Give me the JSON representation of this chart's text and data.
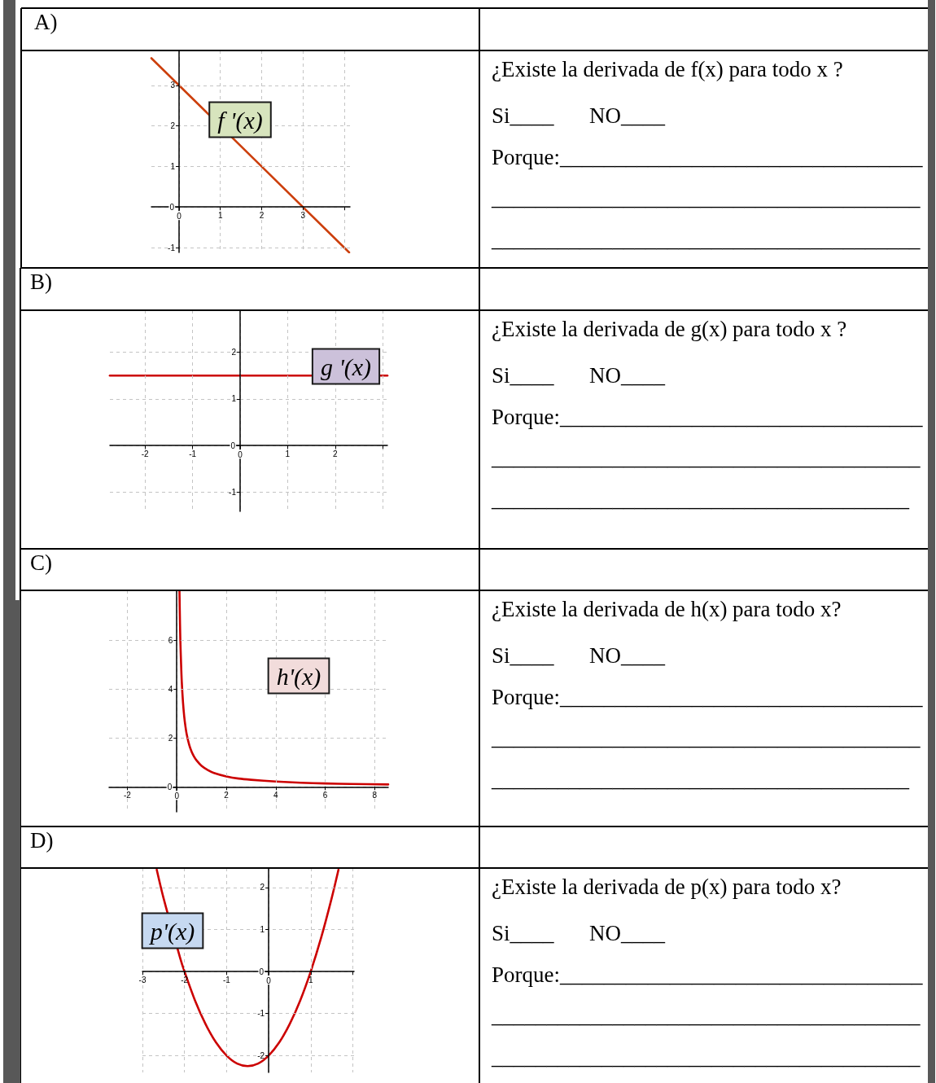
{
  "chart_data": [
    {
      "type": "line",
      "title": "A)",
      "x": [
        -0.67,
        4.12
      ],
      "values": [
        3.67,
        -1.12
      ],
      "color": "#cc3f0c",
      "xlim": [
        -0.67,
        4.14
      ],
      "ylim": [
        -1.12,
        3.86
      ],
      "xticks": [
        0,
        1,
        2,
        3,
        {
          "value": 4,
          "label": null
        }
      ],
      "yticks": [
        -1,
        0,
        1,
        2,
        3
      ],
      "grid": true,
      "annotations": [
        "f '(x)"
      ]
    },
    {
      "type": "other",
      "annotations": [
        "¿Existe la derivada de f(x) para todo x ?",
        "Si____",
        "NO____",
        "Porque:_________________________________",
        "_______________________________________",
        "_______________________________________"
      ]
    },
    {
      "type": "line",
      "title": "B)",
      "x": [
        -2.74,
        3.1
      ],
      "values": [
        1.5,
        1.5
      ],
      "color": "#cc0000",
      "xlim": [
        -2.74,
        3.1
      ],
      "ylim": [
        -1.41,
        2.9
      ],
      "xticks": [
        -2,
        -1,
        0,
        1,
        2,
        {
          "value": 3,
          "label": null
        }
      ],
      "yticks": [
        -1,
        0,
        1,
        2
      ],
      "grid": true,
      "annotations": [
        "g '(x)"
      ]
    },
    {
      "type": "other",
      "annotations": [
        "¿Existe la derivada de g(x) para todo x ?",
        "Si____",
        "NO____",
        "Porque:_________________________________",
        "_______________________________________",
        "______________________________________"
      ]
    },
    {
      "type": "line",
      "title": "C)",
      "x": [
        0.107,
        0.12,
        0.14,
        0.17,
        0.2,
        0.25,
        0.3,
        0.35,
        0.4,
        0.5,
        0.6,
        0.7,
        0.8,
        1,
        1.25,
        1.5,
        2,
        2.5,
        3,
        4,
        5,
        6,
        7,
        8.55
      ],
      "values": [
        8.0,
        7.2,
        6.1,
        5.1,
        4.3,
        3.45,
        2.87,
        2.46,
        2.15,
        1.72,
        1.43,
        1.23,
        1.08,
        0.86,
        0.69,
        0.57,
        0.43,
        0.34,
        0.29,
        0.22,
        0.17,
        0.14,
        0.12,
        0.1
      ],
      "color": "#cc0000",
      "xlim": [
        -2.74,
        8.55
      ],
      "ylim": [
        -1.02,
        8.03
      ],
      "xticks": [
        -2,
        0,
        2,
        4,
        6,
        8
      ],
      "yticks": [
        0,
        2,
        4,
        6
      ],
      "grid": true,
      "annotations": [
        "h'(x)"
      ]
    },
    {
      "type": "other",
      "annotations": [
        "¿Existe la derivada de h(x) para todo x?",
        "Si____",
        "NO____",
        "Porque:_________________________________",
        "_______________________________________",
        "______________________________________"
      ]
    },
    {
      "type": "line",
      "title": "D)",
      "x": [
        -2.66,
        -2.5,
        -2.1,
        -2,
        -1.75,
        -1.5,
        -1.25,
        -1,
        -0.75,
        -0.5,
        -0.25,
        0,
        0.25,
        0.5,
        0.75,
        1,
        1.25,
        1.5,
        1.66
      ],
      "values": [
        2.42,
        1.75,
        0.31,
        0,
        -0.69,
        -1.25,
        -1.69,
        -2,
        -2.19,
        -2.25,
        -2.19,
        -2,
        -1.69,
        -1.25,
        -0.69,
        0,
        0.81,
        1.75,
        2.42
      ],
      "color": "#cc0000",
      "xlim": [
        -3,
        2.03
      ],
      "ylim": [
        -2.4,
        2.46
      ],
      "xticks": [
        -3,
        -2,
        -1,
        0,
        1,
        {
          "value": 2,
          "label": null
        }
      ],
      "yticks": [
        -2,
        -1,
        0,
        1,
        2
      ],
      "grid": true,
      "annotations": [
        "p'(x)"
      ]
    },
    {
      "type": "other",
      "annotations": [
        "¿Existe la derivada de p(x) para todo x?",
        "Si____",
        "NO____",
        "Porque:_________________________________",
        "_______________________________________",
        "_______________________________________"
      ]
    }
  ]
}
